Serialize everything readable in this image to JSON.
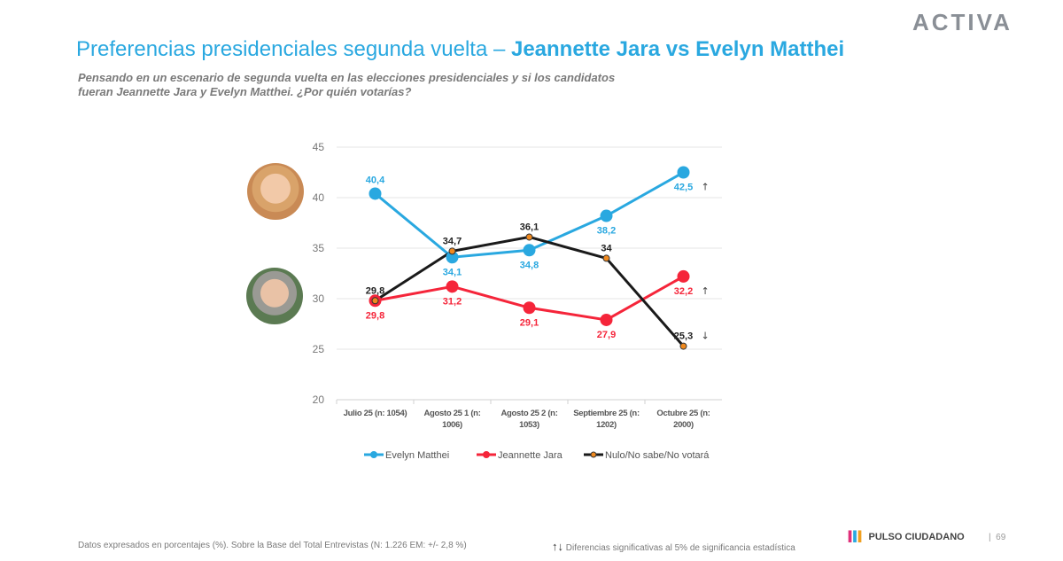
{
  "brand": "ACTIVA",
  "title_regular": "Preferencias presidenciales segunda vuelta – ",
  "title_bold": "Jeannette Jara vs Evelyn Matthei",
  "subtitle": "Pensando en un escenario de segunda vuelta en las elecciones presidenciales y si los candidatos fueran Jeannette Jara y Evelyn Matthei. ¿Por quién votarías?",
  "footer_note": "Datos expresados en porcentajes (%). Sobre la Base del Total Entrevistas (N: 1.226  EM: +/- 2,8 %)",
  "significance_note": "Diferencias  significativas  al 5% de significancia estadística",
  "footer_brand": "PULSO CIUDADANO",
  "page_number": "69",
  "chart_data": {
    "type": "line",
    "categories": [
      "Julio 25 (n: 1054)",
      "Agosto 25 1 (n: 1006)",
      "Agosto 25 2 (n: 1053)",
      "Septiembre 25 (n: 1202)",
      "Octubre 25 (n: 2000)"
    ],
    "ylim": [
      20,
      45
    ],
    "yticks": [
      20,
      25,
      30,
      35,
      40,
      45
    ],
    "grid": true,
    "legend": "bottom",
    "series": [
      {
        "name": "Evelyn Matthei",
        "color": "#29a8e0",
        "values": [
          40.4,
          34.1,
          34.8,
          38.2,
          42.5
        ],
        "labels": [
          "40,4",
          "34,1",
          "34,8",
          "38,2",
          "42,5"
        ],
        "label_pos": [
          "above",
          "below",
          "below",
          "below",
          "below"
        ],
        "significance": [
          null,
          null,
          null,
          null,
          "up"
        ]
      },
      {
        "name": "Jeannette Jara",
        "color": "#f5253a",
        "values": [
          29.8,
          31.2,
          29.1,
          27.9,
          32.2
        ],
        "labels": [
          "29,8",
          "31,2",
          "29,1",
          "27,9",
          "32,2"
        ],
        "label_pos": [
          "below",
          "below",
          "below",
          "below",
          "below"
        ],
        "significance": [
          null,
          null,
          null,
          null,
          "up"
        ]
      },
      {
        "name": "Nulo/No sabe/No votará",
        "color": "#1a1a1a",
        "marker": "#f0891e",
        "values": [
          29.8,
          34.7,
          36.1,
          34,
          25.3
        ],
        "labels": [
          "29,8",
          "34,7",
          "36,1",
          "34",
          "25,3"
        ],
        "label_pos": [
          "above",
          "above",
          "above",
          "above",
          "above"
        ],
        "significance": [
          null,
          null,
          null,
          null,
          "down"
        ]
      }
    ]
  }
}
